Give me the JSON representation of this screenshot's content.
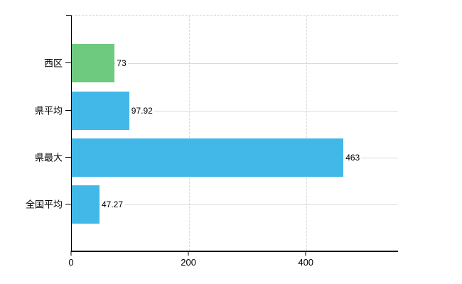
{
  "chart_data": {
    "type": "bar",
    "orientation": "horizontal",
    "title": "",
    "xlabel": "",
    "ylabel": "",
    "categories": [
      "西区",
      "県平均",
      "県最大",
      "全国平均"
    ],
    "values": [
      73,
      97.92,
      463,
      47.27
    ],
    "value_labels": [
      "73",
      "97.92",
      "463",
      "47.27"
    ],
    "bar_colors": [
      "#6dca7e",
      "#41b8e8",
      "#41b8e8",
      "#41b8e8"
    ],
    "x_ticks": [
      0,
      200,
      400
    ],
    "x_tick_labels": [
      "0",
      "200",
      "400"
    ],
    "xlim": [
      0,
      556
    ],
    "legend": "none",
    "grid": {
      "vertical": "dashed",
      "horizontal": "solid"
    },
    "colors": {
      "highlight_bar": "#6dca7e",
      "default_bar": "#41b8e8",
      "axis": "#000000",
      "vertical_grid": "#d9d9d9",
      "horizontal_grid": "#d6ded6",
      "text": "#000000",
      "background": "#ffffff"
    }
  }
}
